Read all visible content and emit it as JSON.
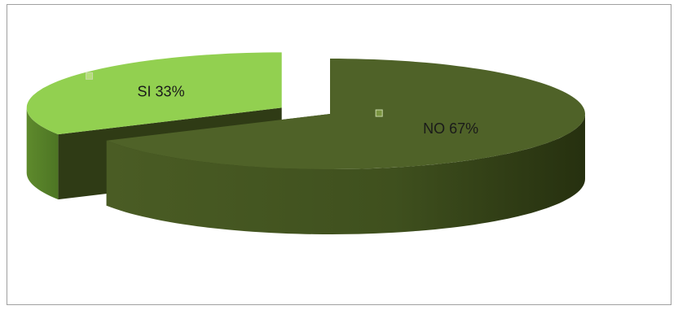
{
  "chart_data": {
    "type": "pie",
    "categories": [
      "NO",
      "SI"
    ],
    "values": [
      67,
      33
    ],
    "value_labels": [
      "67%",
      "33%"
    ],
    "colors": [
      "#4f6228",
      "#92d050"
    ]
  }
}
